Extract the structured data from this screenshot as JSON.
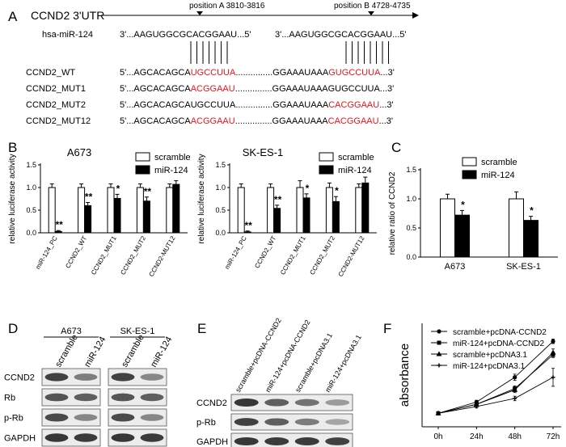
{
  "panelA": {
    "letter": "A",
    "gene_title": "CCND2 3'UTR",
    "mirna_label": "hsa-miR-124",
    "posA_label": "position A 3810-3816",
    "posB_label": "position B 4728-4735",
    "mir_seq_left": "3'...AAGUGGCGCACGGAAU...5'",
    "mir_seq_right": "3'...AAGUGGCGCACGGAAU...5'",
    "rows": [
      {
        "name": "CCND2_WT",
        "p1": "5'...AGCACAGCA",
        "s1": "UGCCUUA",
        "p2": "...............GGAAAUAAA",
        "s2": "GUGCCUUA",
        "p3": "...3'",
        "red1": true,
        "red2": true
      },
      {
        "name": "CCND2_MUT1",
        "p1": "5'...AGCACAGCA",
        "s1": "ACGGAAU",
        "p2": "...............GGAAAUAAA",
        "s2": "GUGCCUUA",
        "p3": "...3'",
        "red1": true,
        "red2": false
      },
      {
        "name": "CCND2_MUT2",
        "p1": "5'...AGCACAGCA",
        "s1": "UGCCUUA",
        "p2": "...............GGAAAUAAA",
        "s2": "CACGGAAU",
        "p3": "...3'",
        "red1": false,
        "red2": true
      },
      {
        "name": "CCND2_MUT12",
        "p1": "5'...AGCACAGCA",
        "s1": "ACGGAAU",
        "p2": "...............GGAAAUAAA",
        "s2": "CACGGAAU",
        "p3": "...3'",
        "red1": true,
        "red2": true
      }
    ]
  },
  "panelB": {
    "letter": "B"
  },
  "panelC": {
    "letter": "C"
  },
  "panelD": {
    "letter": "D",
    "groups": [
      "A673",
      "SK-ES-1"
    ],
    "lanes": [
      "scramble",
      "miR-124",
      "scramble",
      "miR-124"
    ],
    "rows": [
      "CCND2",
      "Rb",
      "p-Rb",
      "GAPDH"
    ],
    "intensity": [
      [
        0.85,
        0.55,
        0.85,
        0.5
      ],
      [
        0.75,
        0.7,
        0.75,
        0.7
      ],
      [
        0.8,
        0.5,
        0.8,
        0.5
      ],
      [
        0.9,
        0.88,
        0.9,
        0.88
      ]
    ]
  },
  "panelE": {
    "letter": "E",
    "lanes": [
      "scramble+pcDNA-CCND2",
      "miR-124+pcDNA-CCND2",
      "scramble+pcDNA3.1",
      "miR-124+pcDNA3.1"
    ],
    "rows": [
      "CCND2",
      "p-Rb",
      "GAPDH"
    ],
    "intensity": [
      [
        0.9,
        0.7,
        0.6,
        0.4
      ],
      [
        0.85,
        0.7,
        0.55,
        0.35
      ],
      [
        0.9,
        0.88,
        0.88,
        0.85
      ]
    ]
  },
  "panelF": {
    "letter": "F"
  },
  "chart_data": [
    {
      "type": "bar",
      "title": "A673",
      "ylabel": "relative luciferase activity",
      "categories": [
        "miR-124_PC",
        "CCND2_WT",
        "CCND2_MUT1",
        "CCND2_MUT2",
        "CCND2-MUT12"
      ],
      "series": [
        {
          "name": "scramble",
          "values": [
            1.0,
            1.0,
            1.0,
            1.0,
            1.0
          ],
          "err": [
            0.08,
            0.08,
            0.08,
            0.08,
            0.08
          ]
        },
        {
          "name": "miR-124",
          "values": [
            0.03,
            0.6,
            0.76,
            0.7,
            1.07
          ],
          "err": [
            0.02,
            0.07,
            0.09,
            0.09,
            0.08
          ]
        }
      ],
      "sig": [
        "**",
        "**",
        "*",
        "**",
        ""
      ],
      "ylim": [
        0,
        1.5
      ],
      "yticks": [
        "0.0",
        "0.5",
        "1.0",
        "1.5"
      ]
    },
    {
      "type": "bar",
      "title": "SK-ES-1",
      "ylabel": "relative luciferase activity",
      "categories": [
        "miR-124_PC",
        "CCND2_WT",
        "CCND2_MUT1",
        "CCND2_MUT2",
        "CCND2-MUT12"
      ],
      "series": [
        {
          "name": "scramble",
          "values": [
            1.0,
            1.0,
            1.0,
            1.0,
            1.0
          ],
          "err": [
            0.08,
            0.08,
            0.15,
            0.1,
            0.08
          ]
        },
        {
          "name": "miR-124",
          "values": [
            0.02,
            0.54,
            0.77,
            0.69,
            1.1
          ],
          "err": [
            0.02,
            0.07,
            0.09,
            0.11,
            0.13
          ]
        }
      ],
      "sig": [
        "**",
        "**",
        "*",
        "*",
        ""
      ],
      "ylim": [
        0,
        1.5
      ],
      "yticks": [
        "0.0",
        "0.5",
        "1.0",
        "1.5"
      ]
    },
    {
      "type": "bar",
      "title": "",
      "ylabel": "relative ratio of CCND2",
      "categories": [
        "A673",
        "SK-ES-1"
      ],
      "series": [
        {
          "name": "scramble",
          "values": [
            1.0,
            1.0
          ],
          "err": [
            0.08,
            0.12
          ]
        },
        {
          "name": "miR-124",
          "values": [
            0.72,
            0.63
          ],
          "err": [
            0.08,
            0.07
          ]
        }
      ],
      "sig": [
        "*",
        "*"
      ],
      "ylim": [
        0,
        1.5
      ],
      "yticks": [
        "0.0",
        "0.5",
        "1.0",
        "1.5"
      ]
    },
    {
      "type": "line",
      "title": "",
      "ylabel": "absorbance",
      "x": [
        "0h",
        "24h",
        "48h",
        "72h"
      ],
      "series": [
        {
          "name": "scramble+pcDNA-CCND2",
          "marker": "circle",
          "values": [
            0.3,
            0.55,
            1.1,
            1.9
          ],
          "err": [
            0.02,
            0.04,
            0.07,
            0.05
          ]
        },
        {
          "name": "miR-124+pcDNA-CCND2",
          "marker": "square",
          "values": [
            0.3,
            0.5,
            0.85,
            1.6
          ],
          "err": [
            0.02,
            0.04,
            0.06,
            0.06
          ]
        },
        {
          "name": "scramble+pcDNA3.1",
          "marker": "triangle",
          "values": [
            0.3,
            0.5,
            0.82,
            1.65
          ],
          "err": [
            0.02,
            0.04,
            0.06,
            0.08
          ]
        },
        {
          "name": "miR-124+pcDNA3.1",
          "marker": "cross",
          "values": [
            0.3,
            0.45,
            0.63,
            1.1
          ],
          "err": [
            0.02,
            0.03,
            0.05,
            0.2
          ]
        }
      ],
      "ylim": [
        0,
        2.3
      ]
    }
  ]
}
